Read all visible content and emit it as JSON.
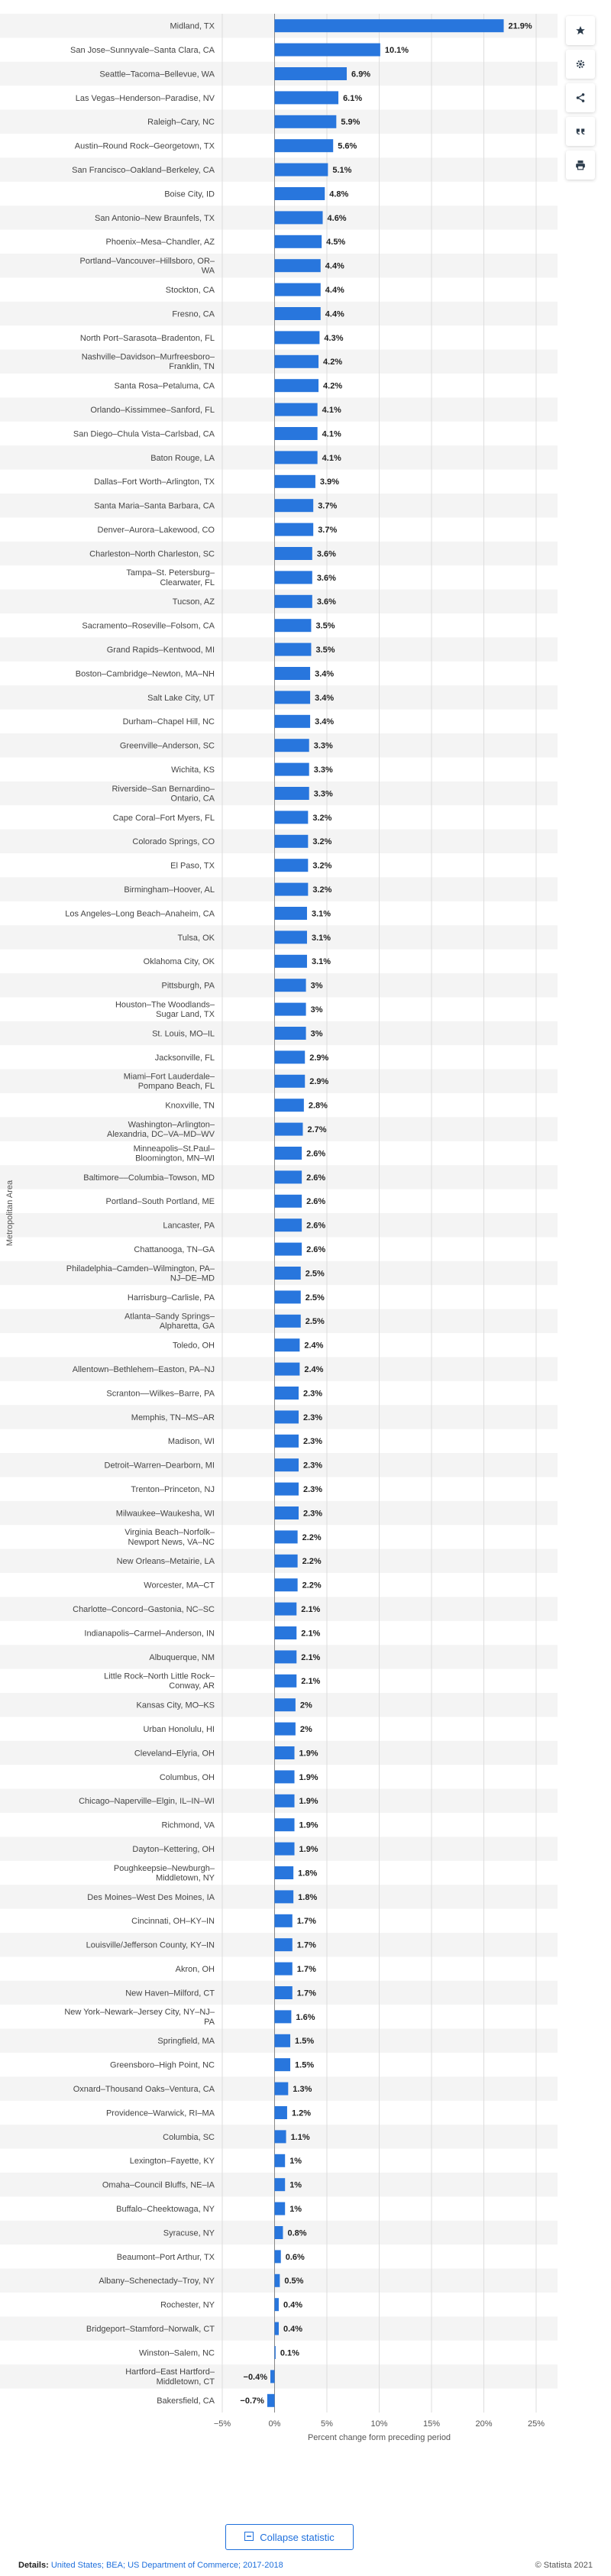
{
  "chart_data": {
    "type": "bar",
    "orientation": "horizontal",
    "categories": [
      "Midland, TX",
      "San Jose–Sunnyvale–Santa Clara, CA",
      "Seattle–Tacoma–Bellevue, WA",
      "Las Vegas–Henderson–Paradise, NV",
      "Raleigh–Cary, NC",
      "Austin–Round Rock–Georgetown, TX",
      "San Francisco–Oakland–Berkeley, CA",
      "Boise City, ID",
      "San Antonio–New Braunfels, TX",
      "Phoenix–Mesa–Chandler, AZ",
      "Portland–Vancouver–Hillsboro, OR–WA",
      "Stockton, CA",
      "Fresno, CA",
      "North Port–Sarasota–Bradenton, FL",
      "Nashville–Davidson–Murfreesboro–Franklin, TN",
      "Santa Rosa–Petaluma, CA",
      "Orlando–Kissimmee–Sanford, FL",
      "San Diego–Chula Vista–Carlsbad, CA",
      "Baton Rouge, LA",
      "Dallas–Fort Worth–Arlington, TX",
      "Santa Maria–Santa Barbara, CA",
      "Denver–Aurora–Lakewood, CO",
      "Charleston–North Charleston, SC",
      "Tampa–St. Petersburg–Clearwater, FL",
      "Tucson, AZ",
      "Sacramento–Roseville–Folsom, CA",
      "Grand Rapids–Kentwood, MI",
      "Boston–Cambridge–Newton, MA–NH",
      "Salt Lake City, UT",
      "Durham–Chapel Hill, NC",
      "Greenville–Anderson, SC",
      "Wichita, KS",
      "Riverside–San Bernardino–Ontario, CA",
      "Cape Coral–Fort Myers, FL",
      "Colorado Springs, CO",
      "El Paso, TX",
      "Birmingham–Hoover, AL",
      "Los Angeles–Long Beach–Anaheim, CA",
      "Tulsa, OK",
      "Oklahoma City, OK",
      "Pittsburgh, PA",
      "Houston–The Woodlands–Sugar Land, TX",
      "St. Louis, MO–IL",
      "Jacksonville, FL",
      "Miami–Fort Lauderdale–Pompano Beach, FL",
      "Knoxville, TN",
      "Washington–Arlington–Alexandria, DC–VA–MD–WV",
      "Minneapolis–St.Paul–Bloomington, MN–WI",
      "Baltimore––Columbia–Towson, MD",
      "Portland–South Portland, ME",
      "Lancaster, PA",
      "Chattanooga, TN–GA",
      "Philadelphia–Camden–Wilmington, PA–NJ–DE–MD",
      "Harrisburg–Carlisle, PA",
      "Atlanta–Sandy Springs–Alpharetta, GA",
      "Toledo, OH",
      "Allentown–Bethlehem–Easton, PA–NJ",
      "Scranton––Wilkes–Barre, PA",
      "Memphis, TN–MS–AR",
      "Madison, WI",
      "Detroit–Warren–Dearborn, MI",
      "Trenton–Princeton, NJ",
      "Milwaukee–Waukesha, WI",
      "Virginia Beach–Norfolk–Newport News, VA–NC",
      "New Orleans–Metairie, LA",
      "Worcester, MA–CT",
      "Charlotte–Concord–Gastonia, NC–SC",
      "Indianapolis–Carmel–Anderson, IN",
      "Albuquerque, NM",
      "Little Rock–North Little Rock–Conway, AR",
      "Kansas City, MO–KS",
      "Urban Honolulu, HI",
      "Cleveland–Elyria, OH",
      "Columbus, OH",
      "Chicago–Naperville–Elgin, IL–IN–WI",
      "Richmond, VA",
      "Dayton–Kettering, OH",
      "Poughkeepsie–Newburgh–Middletown, NY",
      "Des Moines–West Des Moines, IA",
      "Cincinnati, OH–KY–IN",
      "Louisville/Jefferson County, KY–IN",
      "Akron, OH",
      "New Haven–Milford, CT",
      "New York–Newark–Jersey City, NY–NJ–PA",
      "Springfield, MA",
      "Greensboro–High Point, NC",
      "Oxnard–Thousand Oaks–Ventura, CA",
      "Providence–Warwick, RI–MA",
      "Columbia, SC",
      "Lexington–Fayette, KY",
      "Omaha–Council Bluffs, NE–IA",
      "Buffalo–Cheektowaga, NY",
      "Syracuse, NY",
      "Beaumont–Port Arthur, TX",
      "Albany–Schenectady–Troy, NY",
      "Rochester, NY",
      "Bridgeport–Stamford–Norwalk, CT",
      "Winston–Salem, NC",
      "Hartford–East Hartford–Middletown, CT",
      "Bakersfield, CA"
    ],
    "values": [
      21.9,
      10.1,
      6.9,
      6.1,
      5.9,
      5.6,
      5.1,
      4.8,
      4.6,
      4.5,
      4.4,
      4.4,
      4.4,
      4.3,
      4.2,
      4.2,
      4.1,
      4.1,
      4.1,
      3.9,
      3.7,
      3.7,
      3.6,
      3.6,
      3.6,
      3.5,
      3.5,
      3.4,
      3.4,
      3.4,
      3.3,
      3.3,
      3.3,
      3.2,
      3.2,
      3.2,
      3.2,
      3.1,
      3.1,
      3.1,
      3,
      3,
      3,
      2.9,
      2.9,
      2.8,
      2.7,
      2.6,
      2.6,
      2.6,
      2.6,
      2.6,
      2.5,
      2.5,
      2.5,
      2.4,
      2.4,
      2.3,
      2.3,
      2.3,
      2.3,
      2.3,
      2.3,
      2.2,
      2.2,
      2.2,
      2.1,
      2.1,
      2.1,
      2.1,
      2,
      2,
      1.9,
      1.9,
      1.9,
      1.9,
      1.9,
      1.8,
      1.8,
      1.7,
      1.7,
      1.7,
      1.7,
      1.6,
      1.5,
      1.5,
      1.3,
      1.2,
      1.1,
      1,
      1,
      1,
      0.8,
      0.6,
      0.5,
      0.4,
      0.4,
      0.1,
      -0.4,
      -0.7
    ],
    "value_labels": [
      "21.9%",
      "10.1%",
      "6.9%",
      "6.1%",
      "5.9%",
      "5.6%",
      "5.1%",
      "4.8%",
      "4.6%",
      "4.5%",
      "4.4%",
      "4.4%",
      "4.4%",
      "4.3%",
      "4.2%",
      "4.2%",
      "4.1%",
      "4.1%",
      "4.1%",
      "3.9%",
      "3.7%",
      "3.7%",
      "3.6%",
      "3.6%",
      "3.6%",
      "3.5%",
      "3.5%",
      "3.4%",
      "3.4%",
      "3.4%",
      "3.3%",
      "3.3%",
      "3.3%",
      "3.2%",
      "3.2%",
      "3.2%",
      "3.2%",
      "3.1%",
      "3.1%",
      "3.1%",
      "3%",
      "3%",
      "3%",
      "2.9%",
      "2.9%",
      "2.8%",
      "2.7%",
      "2.6%",
      "2.6%",
      "2.6%",
      "2.6%",
      "2.6%",
      "2.5%",
      "2.5%",
      "2.5%",
      "2.4%",
      "2.4%",
      "2.3%",
      "2.3%",
      "2.3%",
      "2.3%",
      "2.3%",
      "2.3%",
      "2.2%",
      "2.2%",
      "2.2%",
      "2.1%",
      "2.1%",
      "2.1%",
      "2.1%",
      "2%",
      "2%",
      "1.9%",
      "1.9%",
      "1.9%",
      "1.9%",
      "1.9%",
      "1.8%",
      "1.8%",
      "1.7%",
      "1.7%",
      "1.7%",
      "1.7%",
      "1.6%",
      "1.5%",
      "1.5%",
      "1.3%",
      "1.2%",
      "1.1%",
      "1%",
      "1%",
      "1%",
      "0.8%",
      "0.6%",
      "0.5%",
      "0.4%",
      "0.4%",
      "0.1%",
      "−0.4%",
      "−0.7%"
    ],
    "xlabel": "Percent change form preceding period",
    "ylabel": "Metropolitan Area",
    "xlim": [
      -5,
      25
    ],
    "xticks": [
      -5,
      0,
      5,
      10,
      15,
      20,
      25
    ],
    "xtick_labels": [
      "−5%",
      "0%",
      "5%",
      "10%",
      "15%",
      "20%",
      "25%"
    ],
    "grid": true,
    "bar_color": "#2876dd",
    "stripe_color": "#f4f4f4"
  },
  "toolbar": {
    "icons": [
      "star-icon",
      "gear-icon",
      "share-icon",
      "quote-icon",
      "print-icon"
    ]
  },
  "collapse_label": "Collapse statistic",
  "footer": {
    "details_label": "Details:",
    "source_text": "United States; BEA; US Department of Commerce; 2017-2018",
    "copyright": "© Statista 2021"
  }
}
